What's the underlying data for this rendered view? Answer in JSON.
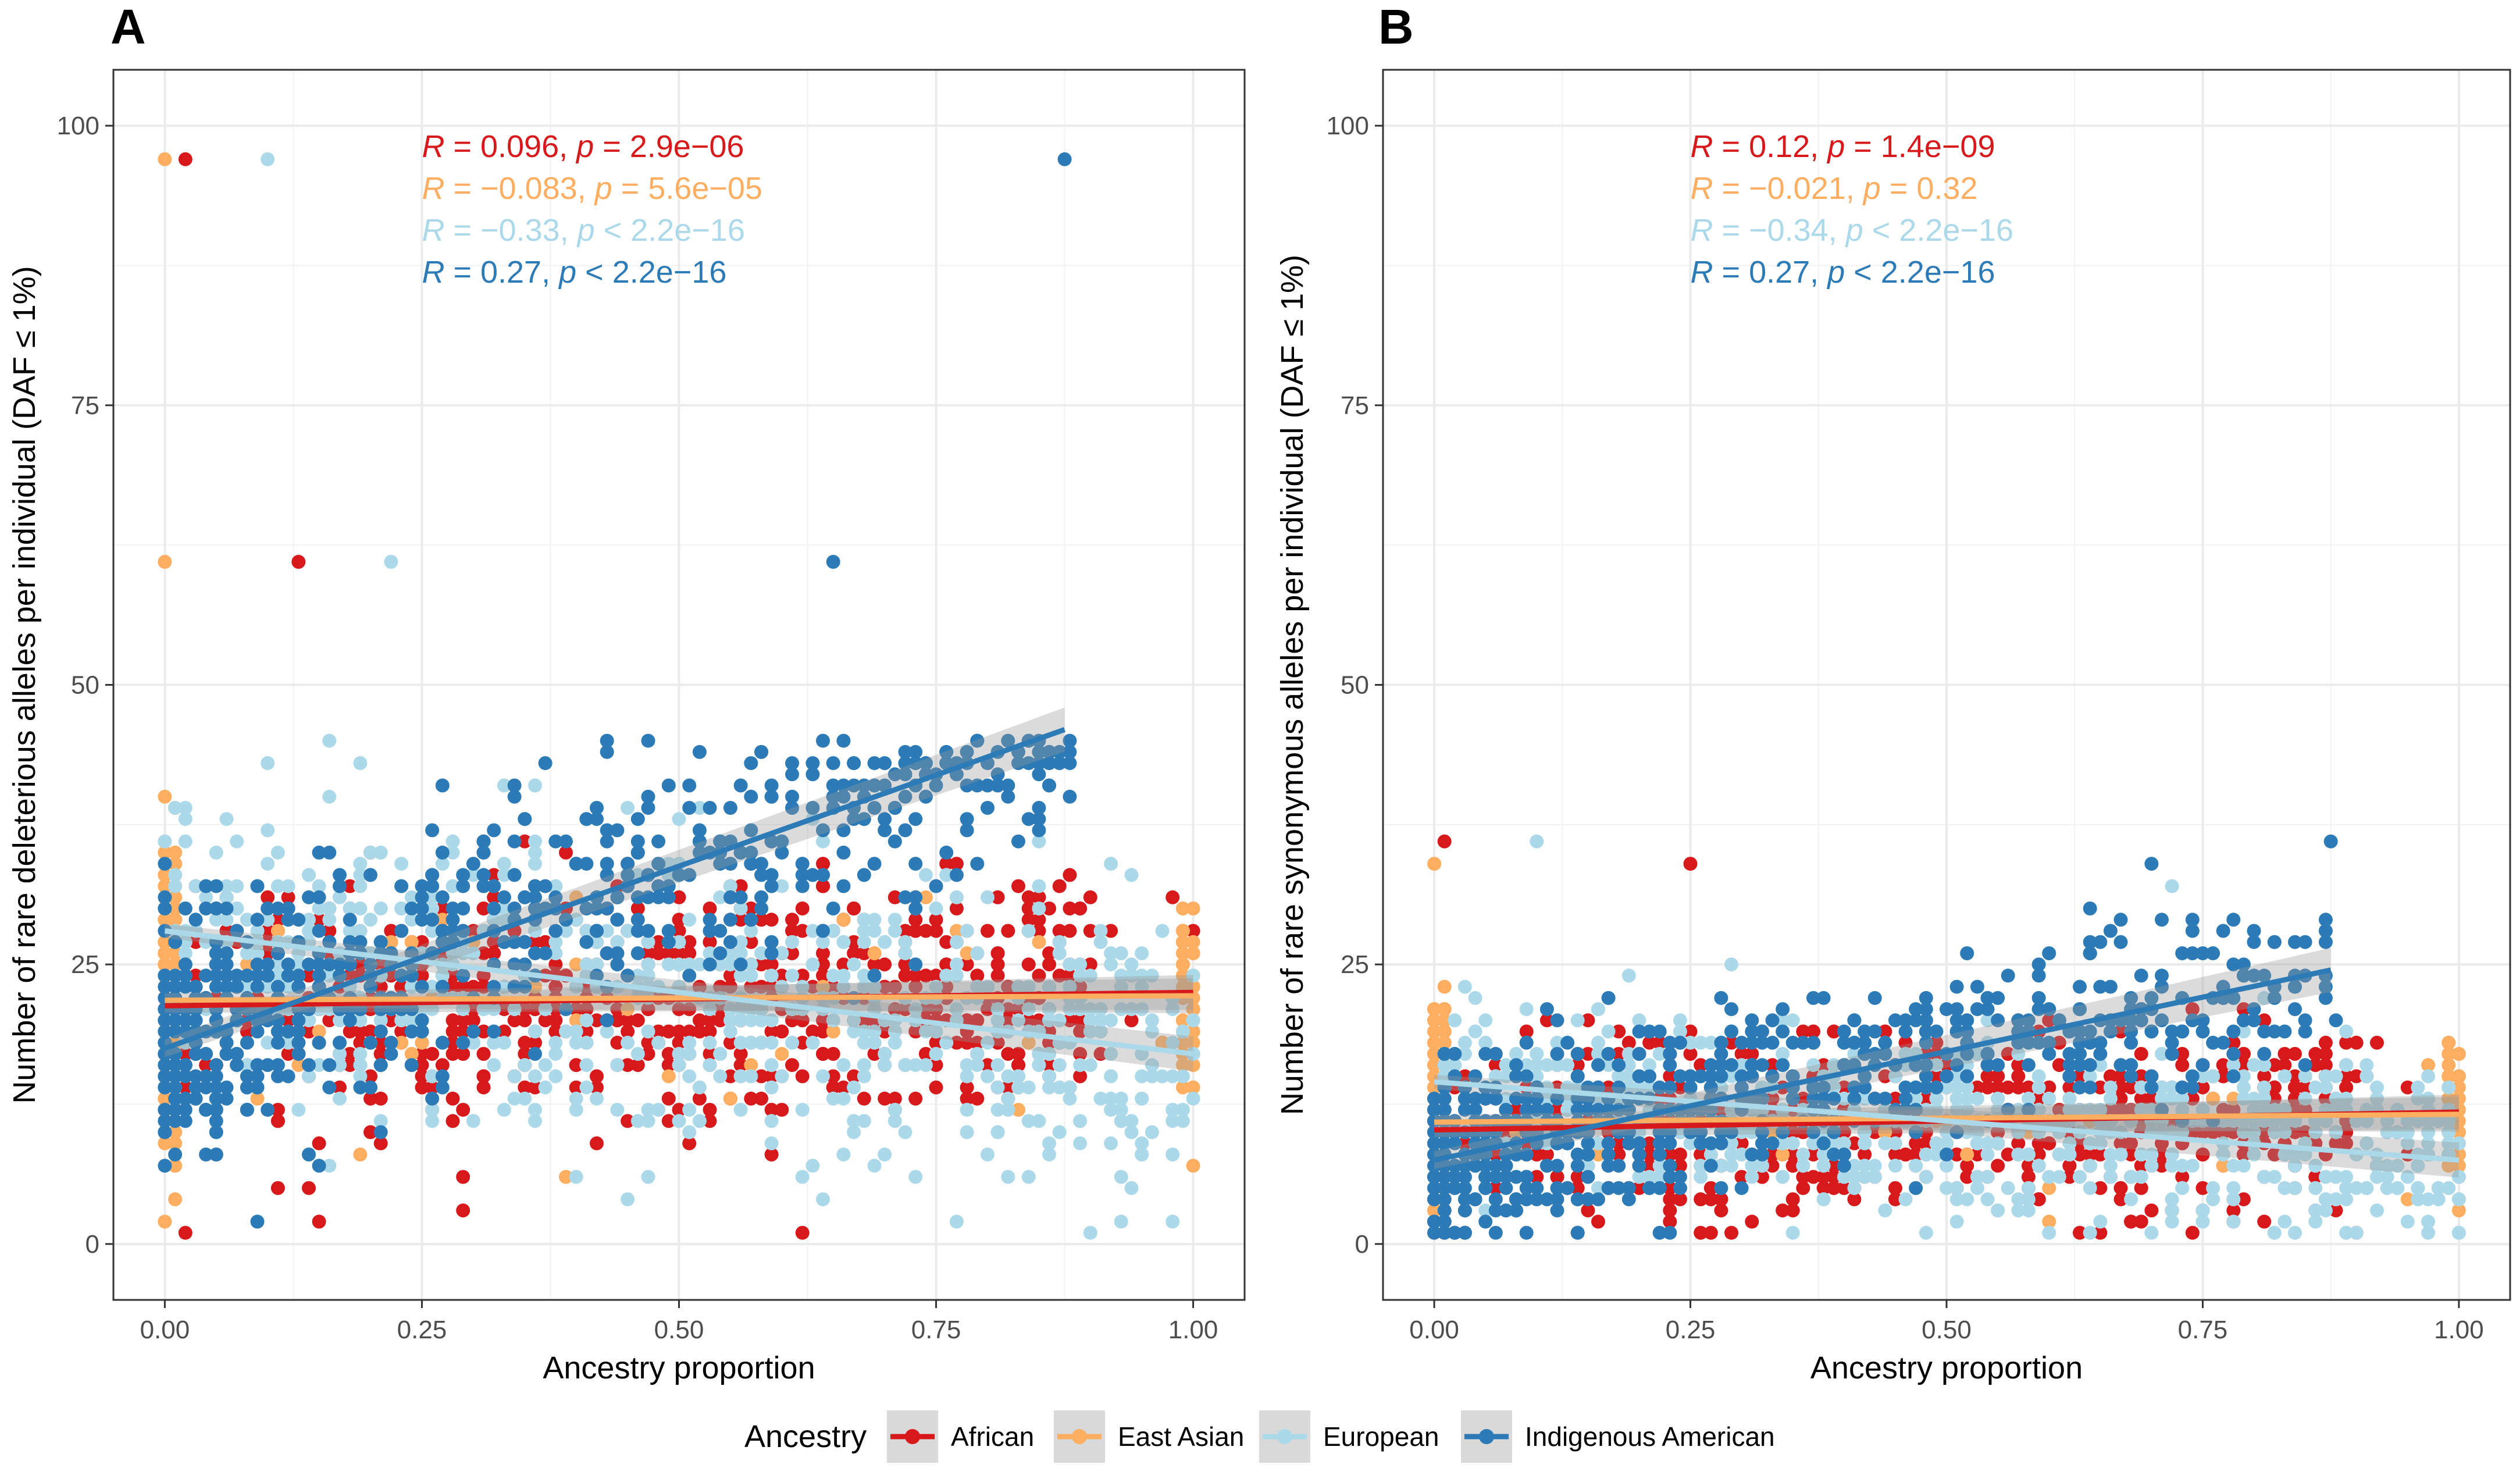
{
  "legend": {
    "title": "Ancestry",
    "items": [
      {
        "label": "African",
        "color": "#d7191c"
      },
      {
        "label": "East Asian",
        "color": "#fdae61"
      },
      {
        "label": "European",
        "color": "#abd9e9"
      },
      {
        "label": "Indigenous American",
        "color": "#2c7bb6"
      }
    ]
  },
  "chart_data": [
    {
      "type": "scatter",
      "panel": "A",
      "xlabel": "Ancestry proportion",
      "ylabel": "Number of rare deleterious alleles per individual (DAF ≤ 1%)",
      "xlim": [
        -0.05,
        1.05
      ],
      "ylim": [
        -5,
        105
      ],
      "x_ticks": [
        "0.00",
        "0.25",
        "0.50",
        "0.75",
        "1.00"
      ],
      "y_ticks": [
        "0",
        "25",
        "50",
        "75",
        "100"
      ],
      "grid": true,
      "stats": [
        {
          "r": "0.096",
          "p": "2.9e−06",
          "p_op": "=",
          "color": "#d7191c"
        },
        {
          "r": "−0.083",
          "p": "5.6e−05",
          "p_op": "=",
          "color": "#fdae61"
        },
        {
          "r": "−0.33",
          "p": "2.2e−16",
          "p_op": "<",
          "color": "#abd9e9"
        },
        {
          "r": "0.27",
          "p": "2.2e−16",
          "p_op": "<",
          "color": "#2c7bb6"
        }
      ],
      "series": [
        {
          "name": "African",
          "color": "#d7191c",
          "x_range": [
            0.0,
            1.0
          ],
          "center": 21,
          "spread": 7,
          "trend": [
            [
              0.0,
              21.3
            ],
            [
              1.0,
              22.5
            ]
          ],
          "outliers": [
            [
              0.02,
              97
            ],
            [
              0.13,
              61
            ],
            [
              0.15,
              2
            ],
            [
              0.29,
              3
            ]
          ]
        },
        {
          "name": "East Asian",
          "color": "#fdae61",
          "x_range": [
            0.0,
            1.0
          ],
          "center": 22,
          "spread": 7,
          "trend": [
            [
              0.0,
              21.8
            ],
            [
              1.0,
              22.2
            ]
          ],
          "outliers": [
            [
              0.0,
              97
            ],
            [
              0.0,
              61
            ],
            [
              0.0,
              2
            ]
          ]
        },
        {
          "name": "European",
          "color": "#abd9e9",
          "x_range": [
            0.0,
            1.0
          ],
          "center": 21,
          "spread": 8,
          "trend": [
            [
              0.0,
              28.0
            ],
            [
              1.0,
              17.0
            ]
          ],
          "outliers": [
            [
              0.1,
              97
            ],
            [
              0.22,
              61
            ],
            [
              0.77,
              2
            ]
          ]
        },
        {
          "name": "Indigenous American",
          "color": "#2c7bb6",
          "x_range": [
            0.0,
            0.88
          ],
          "center": 20,
          "spread": 7,
          "trend": [
            [
              0.0,
              17.5
            ],
            [
              0.875,
              46.0
            ]
          ],
          "outliers": [
            [
              0.875,
              97
            ],
            [
              0.65,
              61
            ],
            [
              0.09,
              2
            ]
          ]
        }
      ]
    },
    {
      "type": "scatter",
      "panel": "B",
      "xlabel": "Ancestry proportion",
      "ylabel": "Number of rare synonymous alleles per individual (DAF ≤ 1%)",
      "xlim": [
        -0.05,
        1.05
      ],
      "ylim": [
        -5,
        105
      ],
      "x_ticks": [
        "0.00",
        "0.25",
        "0.50",
        "0.75",
        "1.00"
      ],
      "y_ticks": [
        "0",
        "25",
        "50",
        "75",
        "100"
      ],
      "grid": true,
      "stats": [
        {
          "r": "0.12",
          "p": "1.4e−09",
          "p_op": "=",
          "color": "#d7191c"
        },
        {
          "r": "−0.021",
          "p": "0.32",
          "p_op": "=",
          "color": "#fdae61"
        },
        {
          "r": "−0.34",
          "p": "2.2e−16",
          "p_op": "<",
          "color": "#abd9e9"
        },
        {
          "r": "0.27",
          "p": "2.2e−16",
          "p_op": "<",
          "color": "#2c7bb6"
        }
      ],
      "series": [
        {
          "name": "African",
          "color": "#d7191c",
          "x_range": [
            0.0,
            1.0
          ],
          "center": 10,
          "spread": 5,
          "trend": [
            [
              0.0,
              10.2
            ],
            [
              1.0,
              11.8
            ]
          ],
          "outliers": [
            [
              0.01,
              36
            ],
            [
              0.25,
              34
            ],
            [
              0.02,
              1
            ]
          ]
        },
        {
          "name": "East Asian",
          "color": "#fdae61",
          "x_range": [
            0.0,
            1.0
          ],
          "center": 11,
          "spread": 5,
          "trend": [
            [
              0.0,
              10.9
            ],
            [
              1.0,
              11.6
            ]
          ],
          "outliers": [
            [
              0.0,
              34
            ],
            [
              0.0,
              1
            ]
          ]
        },
        {
          "name": "European",
          "color": "#abd9e9",
          "x_range": [
            0.0,
            1.0
          ],
          "center": 10,
          "spread": 5,
          "trend": [
            [
              0.0,
              14.5
            ],
            [
              1.0,
              7.5
            ]
          ],
          "outliers": [
            [
              0.1,
              36
            ],
            [
              0.72,
              32
            ],
            [
              0.7,
              1
            ]
          ]
        },
        {
          "name": "Indigenous American",
          "color": "#2c7bb6",
          "x_range": [
            0.0,
            0.88
          ],
          "center": 10,
          "spread": 5,
          "trend": [
            [
              0.0,
              7.5
            ],
            [
              0.875,
              24.5
            ]
          ],
          "outliers": [
            [
              0.875,
              36
            ],
            [
              0.7,
              34
            ],
            [
              0.06,
              1
            ]
          ]
        }
      ]
    }
  ]
}
